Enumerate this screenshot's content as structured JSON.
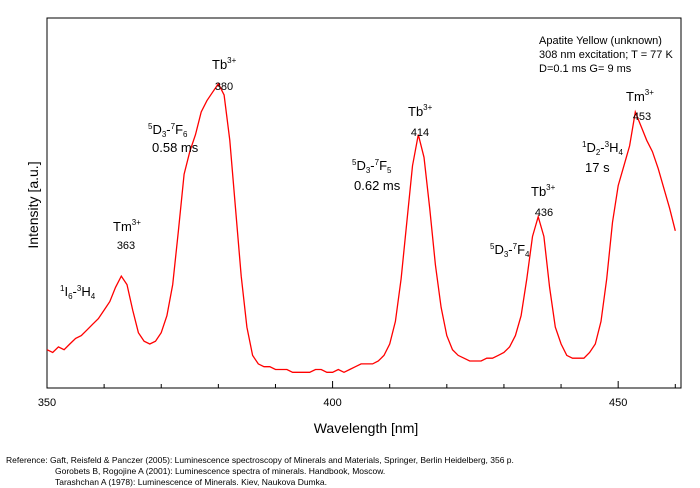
{
  "chart_data": {
    "type": "line",
    "xlabel": "Wavelength [nm]",
    "ylabel": "Intensity [a.u.]",
    "xlim": [
      350,
      461
    ],
    "ylim": [
      0,
      1
    ],
    "xticks": [
      350,
      400,
      450
    ],
    "grid": false,
    "line_color": "#ff0000",
    "info_lines": [
      "Apatite Yellow (unknown)",
      "308 nm excitation; T = 77 K",
      "D=0.1 ms G= 9 ms"
    ],
    "series": [
      {
        "x": [
          350,
          351,
          352,
          353,
          354,
          355,
          356,
          357,
          358,
          359,
          360,
          361,
          362,
          363,
          364,
          365,
          366,
          367,
          368,
          369,
          370,
          371,
          372,
          373,
          374,
          375,
          376,
          377,
          378,
          379,
          380,
          381,
          382,
          383,
          384,
          385,
          386,
          387,
          388,
          389,
          390,
          391,
          392,
          393,
          394,
          395,
          396,
          397,
          398,
          399,
          400,
          401,
          402,
          403,
          404,
          405,
          406,
          407,
          408,
          409,
          410,
          411,
          412,
          413,
          414,
          415,
          416,
          417,
          418,
          419,
          420,
          421,
          422,
          423,
          424,
          425,
          426,
          427,
          428,
          429,
          430,
          431,
          432,
          433,
          434,
          435,
          436,
          437,
          438,
          439,
          440,
          441,
          442,
          443,
          444,
          445,
          446,
          447,
          448,
          449,
          450,
          451,
          452,
          453,
          454,
          455,
          456,
          457,
          458,
          459,
          460
        ],
        "y": [
          0.1,
          0.09,
          0.11,
          0.1,
          0.12,
          0.14,
          0.15,
          0.17,
          0.19,
          0.21,
          0.24,
          0.27,
          0.32,
          0.36,
          0.33,
          0.24,
          0.16,
          0.13,
          0.12,
          0.13,
          0.16,
          0.22,
          0.33,
          0.52,
          0.72,
          0.8,
          0.86,
          0.94,
          0.98,
          1.01,
          1.04,
          1.0,
          0.84,
          0.6,
          0.36,
          0.18,
          0.08,
          0.05,
          0.04,
          0.04,
          0.03,
          0.03,
          0.03,
          0.02,
          0.02,
          0.02,
          0.02,
          0.03,
          0.03,
          0.02,
          0.02,
          0.03,
          0.02,
          0.03,
          0.04,
          0.05,
          0.05,
          0.05,
          0.06,
          0.08,
          0.12,
          0.2,
          0.35,
          0.55,
          0.75,
          0.86,
          0.78,
          0.6,
          0.4,
          0.25,
          0.15,
          0.1,
          0.08,
          0.07,
          0.06,
          0.06,
          0.06,
          0.07,
          0.07,
          0.08,
          0.09,
          0.11,
          0.15,
          0.22,
          0.35,
          0.5,
          0.57,
          0.5,
          0.32,
          0.18,
          0.12,
          0.08,
          0.07,
          0.07,
          0.07,
          0.09,
          0.12,
          0.2,
          0.35,
          0.55,
          0.68,
          0.75,
          0.82,
          0.94,
          0.89,
          0.84,
          0.8,
          0.74,
          0.67,
          0.6,
          0.52
        ]
      }
    ],
    "annotations": [
      {
        "label": "Tm",
        "sup": "3+",
        "value": "363"
      },
      {
        "label": "Tb",
        "sup": "3+",
        "value": "380"
      },
      {
        "label": "Tb",
        "sup": "3+",
        "value": "414"
      },
      {
        "label": "Tb",
        "sup": "3+",
        "value": "436"
      },
      {
        "label": "Tm",
        "sup": "3+",
        "value": "453"
      }
    ],
    "transitions": [
      {
        "id": "t1",
        "sup1": "1",
        "l1": "I",
        "sub1": "6",
        "dash": "-",
        "sup2": "3",
        "l2": "H",
        "sub2": "4"
      },
      {
        "id": "t2",
        "sup1": "5",
        "l1": "D",
        "sub1": "3",
        "dash": "-",
        "sup2": "7",
        "l2": "F",
        "sub2": "6",
        "lifetime": "0.58 ms"
      },
      {
        "id": "t3",
        "sup1": "5",
        "l1": "D",
        "sub1": "3",
        "dash": "-",
        "sup2": "7",
        "l2": "F",
        "sub2": "5",
        "lifetime": "0.62 ms"
      },
      {
        "id": "t4",
        "sup1": "5",
        "l1": "D",
        "sub1": "3",
        "dash": "-",
        "sup2": "7",
        "l2": "F",
        "sub2": "4"
      },
      {
        "id": "t5",
        "sup1": "1",
        "l1": "D",
        "sub1": "2",
        "dash": "-",
        "sup2": "3",
        "l2": "H",
        "sub2": "4",
        "lifetime": "17  s"
      }
    ]
  },
  "references": [
    "Reference: Gaft, Reisfeld & Panczer (2005): Luminescence spectroscopy of Minerals and Materials, Springer, Berlin Heidelberg, 356 p.",
    "Gorobets B, Rogojine A (2001): Luminescence spectra of minerals. Handbook, Moscow.",
    "Tarashchan A (1978): Luminescence of Minerals. Kiev, Naukova Dumka."
  ]
}
